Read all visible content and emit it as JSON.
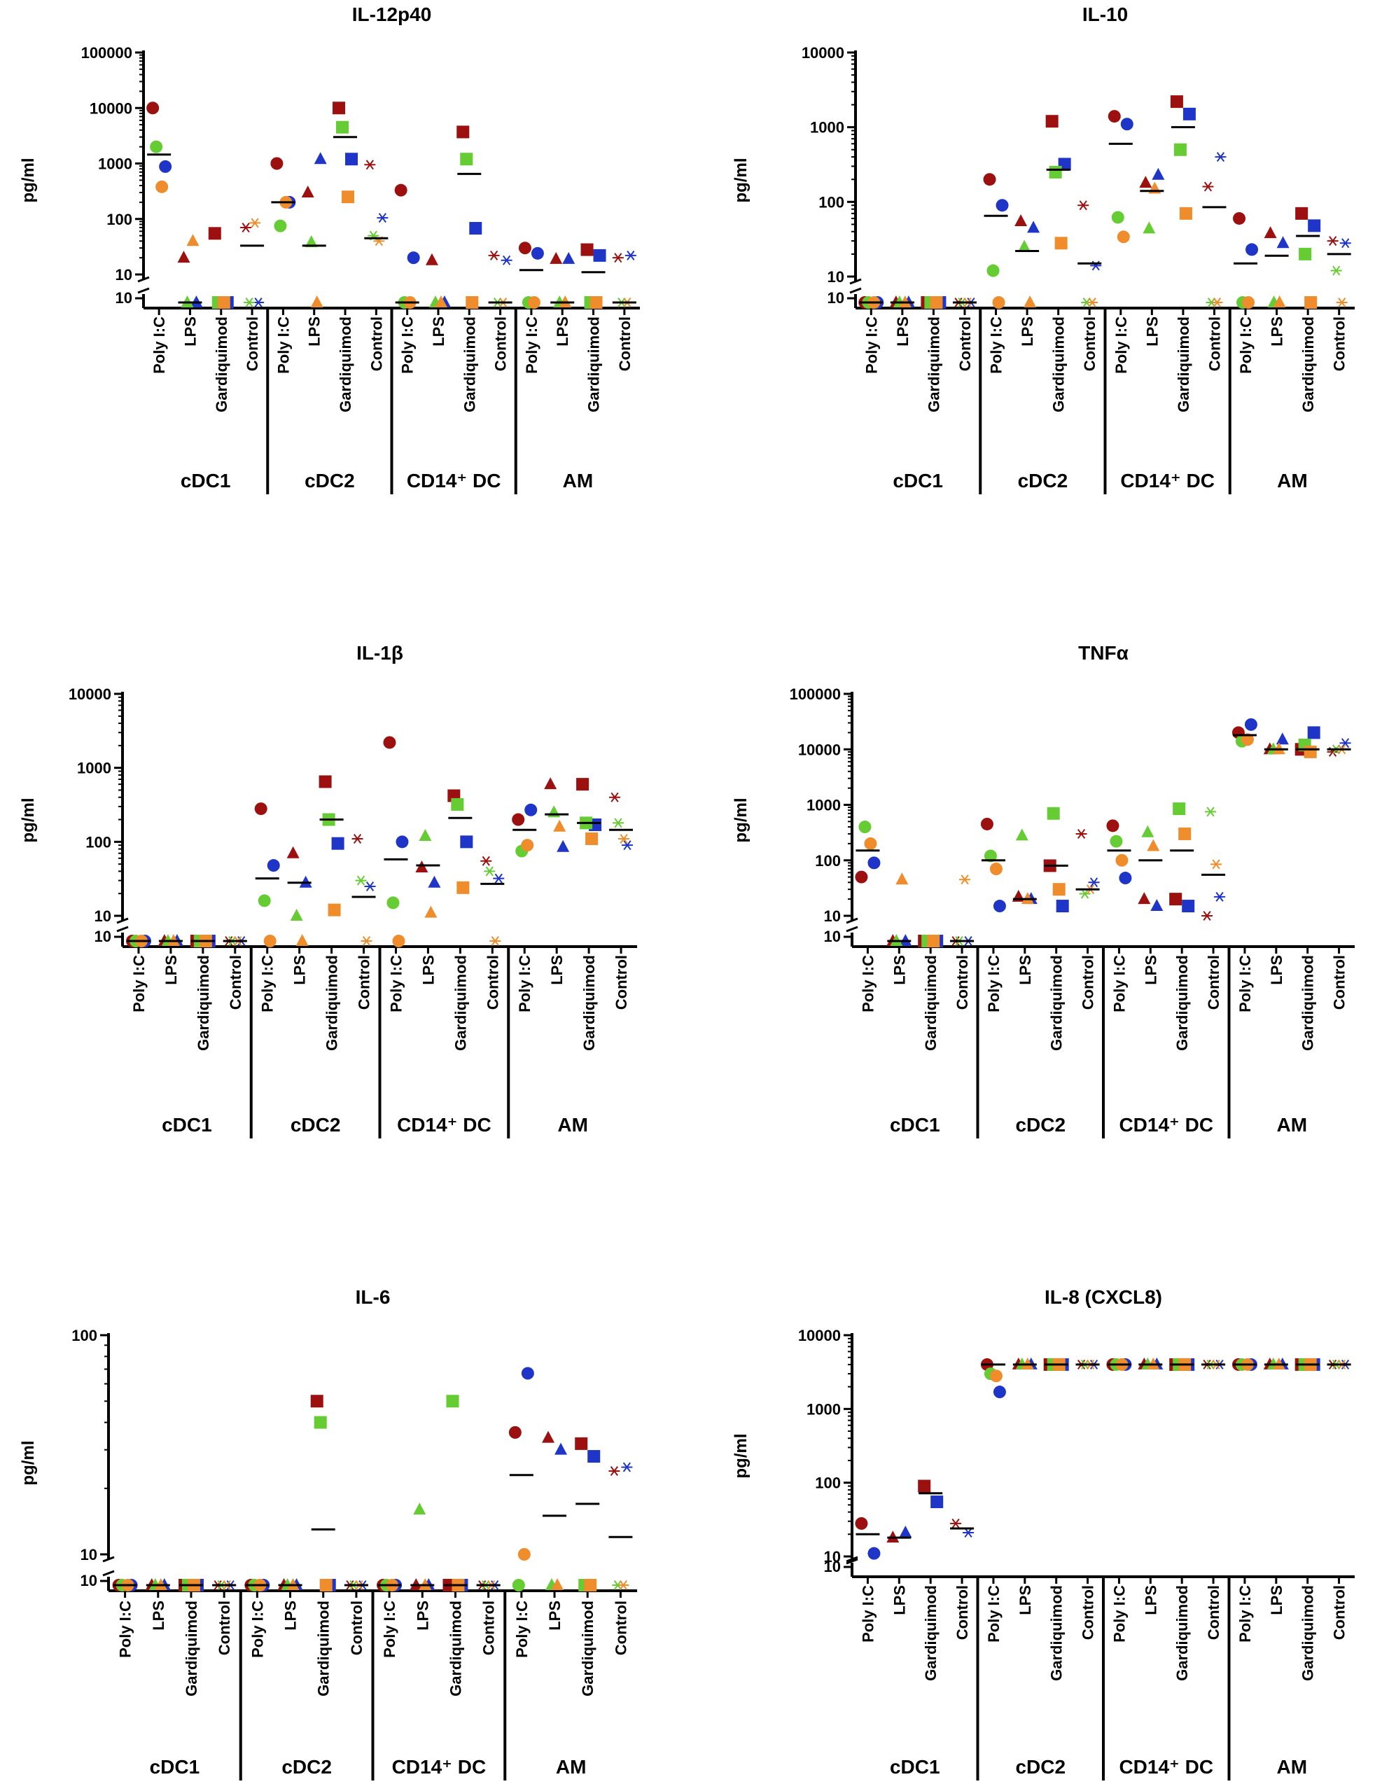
{
  "figure": {
    "y_unit_label": "pg/ml",
    "treatments": [
      "Poly I:C",
      "LPS",
      "Gardiquimod",
      "Control"
    ],
    "cell_groups": [
      "cDC1",
      "cDC2",
      "CD14⁺ DC",
      "AM"
    ],
    "colors": {
      "dark_red": "#9c1010",
      "blue": "#1f35c8",
      "green": "#66cc33",
      "orange": "#ef8d2c",
      "median": "#000000"
    },
    "marker_shapes": {
      "Poly I:C": "circle",
      "LPS": "triangle",
      "Gardiquimod": "square",
      "Control": "asterisk"
    },
    "donor_colors": [
      "dark_red",
      "blue",
      "green",
      "orange"
    ]
  },
  "chart_data": [
    {
      "type": "scatter",
      "title": "IL-12p40",
      "ylabel": "pg/ml",
      "yscale": "log",
      "ylim": [
        10,
        100000
      ],
      "yticks": [
        "10",
        "100",
        "1000",
        "10000",
        "100000"
      ],
      "floor_label": "10",
      "categories": [
        "cDC1 Poly I:C",
        "cDC1 LPS",
        "cDC1 Gardiquimod",
        "cDC1 Control",
        "cDC2 Poly I:C",
        "cDC2 LPS",
        "cDC2 Gardiquimod",
        "cDC2 Control",
        "CD14+ DC Poly I:C",
        "CD14+ DC LPS",
        "CD14+ DC Gardiquimod",
        "CD14+ DC Control",
        "AM Poly I:C",
        "AM LPS",
        "AM Gardiquimod",
        "AM Control"
      ],
      "points": [
        [
          10000,
          880,
          2000,
          380
        ],
        [
          20,
          "floor",
          "floor",
          40
        ],
        [
          55,
          "floor",
          "floor",
          "floor"
        ],
        [
          70,
          "floor",
          "floor",
          85
        ],
        [
          1000,
          200,
          75,
          200
        ],
        [
          300,
          1200,
          38,
          "floor"
        ],
        [
          10000,
          1200,
          4500,
          250
        ],
        [
          950,
          105,
          50,
          40
        ],
        [
          330,
          20,
          "floor",
          "floor"
        ],
        [
          18,
          "floor",
          "floor",
          "floor"
        ],
        [
          3700,
          68,
          1200,
          "floor"
        ],
        [
          22,
          18,
          "floor",
          "floor"
        ],
        [
          30,
          24,
          "floor",
          "floor"
        ],
        [
          19,
          19,
          "floor",
          "floor"
        ],
        [
          28,
          22,
          "floor",
          "floor"
        ],
        [
          20,
          22,
          "floor",
          "floor"
        ]
      ],
      "medians": [
        1450,
        "floor",
        null,
        33,
        200,
        33,
        3000,
        45,
        "floor",
        null,
        650,
        "floor",
        12,
        "floor",
        11,
        "floor"
      ]
    },
    {
      "type": "scatter",
      "title": "IL-10",
      "ylabel": "pg/ml",
      "yscale": "log",
      "ylim": [
        10,
        10000
      ],
      "yticks": [
        "10",
        "100",
        "1000",
        "10000"
      ],
      "floor_label": "10",
      "categories": [
        "cDC1 Poly I:C",
        "cDC1 LPS",
        "cDC1 Gardiquimod",
        "cDC1 Control",
        "cDC2 Poly I:C",
        "cDC2 LPS",
        "cDC2 Gardiquimod",
        "cDC2 Control",
        "CD14+ DC Poly I:C",
        "CD14+ DC LPS",
        "CD14+ DC Gardiquimod",
        "CD14+ DC Control",
        "AM Poly I:C",
        "AM LPS",
        "AM Gardiquimod",
        "AM Control"
      ],
      "points": [
        [
          "floor",
          "floor",
          "floor",
          "floor"
        ],
        [
          "floor",
          "floor",
          "floor",
          "floor"
        ],
        [
          "floor",
          "floor",
          "floor",
          "floor"
        ],
        [
          "floor",
          "floor",
          "floor",
          "floor"
        ],
        [
          200,
          90,
          12,
          "floor"
        ],
        [
          55,
          45,
          25,
          "floor"
        ],
        [
          1200,
          320,
          250,
          28
        ],
        [
          90,
          14,
          "floor",
          "floor"
        ],
        [
          1400,
          1100,
          62,
          34
        ],
        [
          180,
          230,
          44,
          150
        ],
        [
          2200,
          1500,
          500,
          70
        ],
        [
          160,
          400,
          "floor",
          "floor"
        ],
        [
          60,
          23,
          "floor",
          "floor"
        ],
        [
          38,
          28,
          "floor",
          "floor"
        ],
        [
          70,
          48,
          20,
          "floor"
        ],
        [
          30,
          28,
          12,
          "floor"
        ]
      ],
      "medians": [
        "floor",
        "floor",
        null,
        "floor",
        65,
        22,
        270,
        15,
        600,
        140,
        1000,
        85,
        15,
        19,
        35,
        20
      ]
    },
    {
      "type": "scatter",
      "title": "IL-1β",
      "ylabel": "pg/ml",
      "yscale": "log",
      "ylim": [
        10,
        10000
      ],
      "yticks": [
        "10",
        "100",
        "1000",
        "10000"
      ],
      "floor_label": "10",
      "categories": [
        "cDC1 Poly I:C",
        "cDC1 LPS",
        "cDC1 Gardiquimod",
        "cDC1 Control",
        "cDC2 Poly I:C",
        "cDC2 LPS",
        "cDC2 Gardiquimod",
        "cDC2 Control",
        "CD14+ DC Poly I:C",
        "CD14+ DC LPS",
        "CD14+ DC Gardiquimod",
        "CD14+ DC Control",
        "AM Poly I:C",
        "AM LPS",
        "AM Gardiquimod",
        "AM Control"
      ],
      "points": [
        [
          "floor",
          "floor",
          "floor",
          "floor"
        ],
        [
          "floor",
          "floor",
          "floor",
          "floor"
        ],
        [
          "floor",
          "floor",
          "floor",
          "floor"
        ],
        [
          "floor",
          "floor",
          "floor",
          "floor"
        ],
        [
          280,
          48,
          16,
          "floor"
        ],
        [
          70,
          28,
          10,
          "floor"
        ],
        [
          650,
          95,
          200,
          12
        ],
        [
          110,
          25,
          30,
          "floor"
        ],
        [
          2200,
          100,
          15,
          "floor"
        ],
        [
          45,
          28,
          120,
          11
        ],
        [
          420,
          100,
          320,
          24
        ],
        [
          55,
          32,
          40,
          "floor"
        ],
        [
          200,
          270,
          75,
          90
        ],
        [
          600,
          85,
          250,
          160
        ],
        [
          600,
          170,
          180,
          110
        ],
        [
          400,
          90,
          180,
          110
        ]
      ],
      "medians": [
        "floor",
        "floor",
        "floor",
        "floor",
        32,
        28,
        200,
        18,
        58,
        48,
        210,
        27,
        145,
        235,
        180,
        145
      ]
    },
    {
      "type": "scatter",
      "title": "TNFα",
      "ylabel": "pg/ml",
      "yscale": "log",
      "ylim": [
        10,
        100000
      ],
      "yticks": [
        "10",
        "100",
        "1000",
        "10000",
        "100000"
      ],
      "floor_label": "10",
      "categories": [
        "cDC1 Poly I:C",
        "cDC1 LPS",
        "cDC1 Gardiquimod",
        "cDC1 Control",
        "cDC2 Poly I:C",
        "cDC2 LPS",
        "cDC2 Gardiquimod",
        "cDC2 Control",
        "CD14+ DC Poly I:C",
        "CD14+ DC LPS",
        "CD14+ DC Gardiquimod",
        "CD14+ DC Control",
        "AM Poly I:C",
        "AM LPS",
        "AM Gardiquimod",
        "AM Control"
      ],
      "points": [
        [
          50,
          90,
          400,
          200
        ],
        [
          "floor",
          "floor",
          "floor",
          45
        ],
        [
          "floor",
          "floor",
          "floor",
          "floor"
        ],
        [
          "floor",
          "floor",
          "floor",
          45
        ],
        [
          450,
          15,
          120,
          70
        ],
        [
          22,
          20,
          280,
          20
        ],
        [
          80,
          15,
          700,
          30
        ],
        [
          300,
          40,
          25,
          30
        ],
        [
          420,
          48,
          220,
          100
        ],
        [
          20,
          15,
          320,
          180
        ],
        [
          20,
          15,
          850,
          300
        ],
        [
          10,
          22,
          750,
          85
        ],
        [
          20000,
          28000,
          14000,
          15000
        ],
        [
          10000,
          15000,
          10000,
          10000
        ],
        [
          10000,
          20000,
          12000,
          9000
        ],
        [
          9000,
          13000,
          10000,
          10000
        ]
      ],
      "medians": [
        150,
        "floor",
        null,
        "floor",
        100,
        20,
        80,
        30,
        150,
        100,
        150,
        55,
        18000,
        10000,
        10000,
        10000
      ]
    },
    {
      "type": "scatter",
      "title": "IL-6",
      "ylabel": "pg/ml",
      "yscale": "log",
      "ylim": [
        10,
        100
      ],
      "yticks": [
        "10",
        "100"
      ],
      "floor_label": "10",
      "categories": [
        "cDC1 Poly I:C",
        "cDC1 LPS",
        "cDC1 Gardiquimod",
        "cDC1 Control",
        "cDC2 Poly I:C",
        "cDC2 LPS",
        "cDC2 Gardiquimod",
        "cDC2 Control",
        "CD14+ DC Poly I:C",
        "CD14+ DC LPS",
        "CD14+ DC Gardiquimod",
        "CD14+ DC Control",
        "AM Poly I:C",
        "AM LPS",
        "AM Gardiquimod",
        "AM Control"
      ],
      "points": [
        [
          "floor",
          "floor",
          "floor",
          "floor"
        ],
        [
          "floor",
          "floor",
          "floor",
          "floor"
        ],
        [
          "floor",
          "floor",
          "floor",
          "floor"
        ],
        [
          "floor",
          "floor",
          "floor",
          "floor"
        ],
        [
          "floor",
          "floor",
          "floor",
          "floor"
        ],
        [
          "floor",
          "floor",
          "floor",
          "floor"
        ],
        [
          50,
          "floor",
          40,
          "floor"
        ],
        [
          "floor",
          "floor",
          "floor",
          "floor"
        ],
        [
          "floor",
          "floor",
          "floor",
          "floor"
        ],
        [
          "floor",
          "floor",
          16,
          "floor"
        ],
        [
          "floor",
          "floor",
          50,
          "floor"
        ],
        [
          "floor",
          "floor",
          "floor",
          "floor"
        ],
        [
          36,
          67,
          "floor",
          10
        ],
        [
          34,
          30,
          "floor",
          "floor"
        ],
        [
          32,
          28,
          "floor",
          "floor"
        ],
        [
          24,
          25,
          "floor",
          "floor"
        ]
      ],
      "medians": [
        "floor",
        "floor",
        "floor",
        "floor",
        "floor",
        "floor",
        13,
        "floor",
        "floor",
        "floor",
        "floor",
        "floor",
        23,
        15,
        17,
        12
      ]
    },
    {
      "type": "scatter",
      "title": "IL-8 (CXCL8)",
      "ylabel": "pg/ml",
      "yscale": "log",
      "ylim": [
        10,
        10000
      ],
      "yticks": [
        "10",
        "100",
        "1000",
        "10000"
      ],
      "floor_label": "10",
      "categories": [
        "cDC1 Poly I:C",
        "cDC1 LPS",
        "cDC1 Gardiquimod",
        "cDC1 Control",
        "cDC2 Poly I:C",
        "cDC2 LPS",
        "cDC2 Gardiquimod",
        "cDC2 Control",
        "CD14+ DC Poly I:C",
        "CD14+ DC LPS",
        "CD14+ DC Gardiquimod",
        "CD14+ DC Control",
        "AM Poly I:C",
        "AM LPS",
        "AM Gardiquimod",
        "AM Control"
      ],
      "points": [
        [
          28,
          11,
          null,
          null
        ],
        [
          18,
          21,
          null,
          null
        ],
        [
          90,
          55,
          null,
          null
        ],
        [
          28,
          21,
          null,
          null
        ],
        [
          4000,
          1700,
          3000,
          2800
        ],
        [
          4000,
          4000,
          4000,
          4000
        ],
        [
          4000,
          4000,
          4000,
          4000
        ],
        [
          4000,
          4000,
          4000,
          4000
        ],
        [
          4000,
          4000,
          4000,
          4000
        ],
        [
          4000,
          4000,
          4000,
          4000
        ],
        [
          4000,
          4000,
          4000,
          4000
        ],
        [
          4000,
          4000,
          4000,
          4000
        ],
        [
          4000,
          4000,
          4000,
          4000
        ],
        [
          4000,
          4000,
          4000,
          4000
        ],
        [
          4000,
          4000,
          4000,
          4000
        ],
        [
          4000,
          4000,
          4000,
          4000
        ]
      ],
      "medians": [
        20,
        18,
        72,
        24,
        4000,
        4000,
        4000,
        4000,
        4000,
        4000,
        4000,
        4000,
        4000,
        4000,
        4000,
        4000
      ]
    }
  ]
}
